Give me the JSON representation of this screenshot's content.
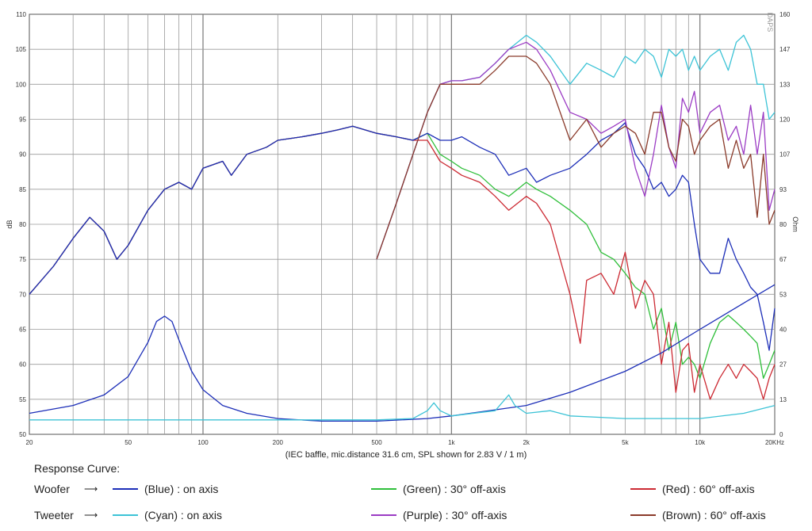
{
  "chart_data": {
    "type": "line",
    "title": "",
    "xlabel": "",
    "ylabel": "dB",
    "y2label": "Ohm",
    "xscale": "log",
    "xlim": [
      20,
      20000
    ],
    "ylim": [
      50,
      110
    ],
    "y2lim": [
      0,
      160
    ],
    "grid": true,
    "x_tick_labels": [
      "20",
      "50",
      "100",
      "200",
      "500",
      "1k",
      "2k",
      "5k",
      "10k",
      "20KHz"
    ],
    "x_tick_values": [
      20,
      50,
      100,
      200,
      500,
      1000,
      2000,
      5000,
      10000,
      20000
    ],
    "y_tick_labels": [
      "50",
      "55",
      "60",
      "65",
      "70",
      "75",
      "80",
      "85",
      "90",
      "95",
      "100",
      "105",
      "110"
    ],
    "y2_tick_labels": [
      "0",
      "13",
      "27",
      "40",
      "53",
      "67",
      "80",
      "93",
      "107",
      "120",
      "133",
      "147",
      "160"
    ],
    "watermark": "DAPS",
    "note": "(IEC baffle, mic.distance 31.6 cm, SPL shown for 2.83 V / 1 m)",
    "series": [
      {
        "name": "Woofer (Green) : 30° off-axis",
        "color": "#2fbf3a",
        "x": [
          20,
          25,
          30,
          35,
          40,
          45,
          50,
          60,
          70,
          80,
          90,
          100,
          120,
          130,
          150,
          180,
          200,
          250,
          300,
          350,
          400,
          500,
          600,
          700,
          800,
          900,
          1000,
          1100,
          1300,
          1500,
          1700,
          2000,
          2200,
          2500,
          3000,
          3500,
          4000,
          4500,
          5000,
          5500,
          6000,
          6500,
          7000,
          7500,
          8000,
          8500,
          9000,
          9500,
          10000,
          11000,
          12000,
          13000,
          14000,
          15000,
          16000,
          17000,
          18000,
          19000,
          20000
        ],
        "y": [
          70,
          74,
          78,
          81,
          79,
          75,
          77,
          82,
          85,
          86,
          85,
          88,
          89,
          87,
          90,
          91,
          92,
          92.5,
          93,
          93.5,
          94,
          93,
          92.5,
          92,
          93,
          90,
          89,
          88,
          87,
          85,
          84,
          86,
          85,
          84,
          82,
          80,
          76,
          75,
          73,
          71,
          70,
          65,
          68,
          62,
          66,
          60,
          61,
          60,
          58,
          63,
          66,
          67,
          66,
          65,
          64,
          63,
          58,
          60,
          62
        ]
      },
      {
        "name": "Woofer (Red) : 60° off-axis",
        "color": "#cc2a33",
        "x": [
          20,
          25,
          30,
          35,
          40,
          45,
          50,
          60,
          70,
          80,
          90,
          100,
          120,
          130,
          150,
          180,
          200,
          250,
          300,
          350,
          400,
          500,
          600,
          700,
          800,
          900,
          1000,
          1100,
          1300,
          1500,
          1700,
          2000,
          2200,
          2500,
          3000,
          3300,
          3500,
          4000,
          4500,
          5000,
          5500,
          6000,
          6500,
          7000,
          7500,
          8000,
          8500,
          9000,
          9500,
          10000,
          11000,
          12000,
          13000,
          14000,
          15000,
          16000,
          17000,
          18000,
          19000,
          20000
        ],
        "y": [
          70,
          74,
          78,
          81,
          79,
          75,
          77,
          82,
          85,
          86,
          85,
          88,
          89,
          87,
          90,
          91,
          92,
          92.5,
          93,
          93.5,
          94,
          93,
          92.5,
          92,
          92,
          89,
          88,
          87,
          86,
          84,
          82,
          84,
          83,
          80,
          70,
          63,
          72,
          73,
          70,
          76,
          68,
          72,
          70,
          60,
          66,
          56,
          62,
          63,
          56,
          60,
          55,
          58,
          60,
          58,
          60,
          59,
          58,
          55,
          58,
          60
        ]
      },
      {
        "name": "Woofer (Blue) : on axis",
        "color": "#1c2eb8",
        "x": [
          20,
          25,
          30,
          35,
          40,
          45,
          50,
          60,
          70,
          80,
          90,
          100,
          120,
          130,
          150,
          180,
          200,
          250,
          300,
          350,
          400,
          500,
          600,
          700,
          800,
          900,
          1000,
          1100,
          1300,
          1500,
          1700,
          2000,
          2200,
          2500,
          3000,
          3500,
          4000,
          4500,
          5000,
          5500,
          6000,
          6500,
          7000,
          7500,
          8000,
          8500,
          9000,
          9500,
          10000,
          11000,
          12000,
          13000,
          14000,
          15000,
          16000,
          17000,
          18000,
          19000,
          20000
        ],
        "y": [
          70,
          74,
          78,
          81,
          79,
          75,
          77,
          82,
          85,
          86,
          85,
          88,
          89,
          87,
          90,
          91,
          92,
          92.5,
          93,
          93.5,
          94,
          93,
          92.5,
          92,
          93,
          92,
          92,
          92.5,
          91,
          90,
          87,
          88,
          86,
          87,
          88,
          90,
          92,
          93,
          94.5,
          90,
          88,
          85,
          86,
          84,
          85,
          87,
          86,
          80,
          75,
          73,
          73,
          78,
          75,
          73,
          71,
          70,
          66,
          62,
          68
        ]
      },
      {
        "name": "Tweeter (Cyan) : on axis",
        "color": "#3cc3d6",
        "x": [
          500,
          600,
          700,
          800,
          900,
          1000,
          1100,
          1300,
          1500,
          1700,
          2000,
          2200,
          2500,
          3000,
          3500,
          4000,
          4500,
          5000,
          5500,
          6000,
          6500,
          7000,
          7500,
          8000,
          8500,
          9000,
          9500,
          10000,
          11000,
          12000,
          13000,
          14000,
          15000,
          16000,
          17000,
          18000,
          19000,
          20000
        ],
        "y": [
          75,
          83,
          90,
          96,
          100,
          100.5,
          100.5,
          101,
          103,
          105,
          107,
          106,
          104,
          100,
          103,
          102,
          101,
          104,
          103,
          105,
          104,
          101,
          105,
          104,
          105,
          102,
          104,
          102,
          104,
          105,
          102,
          106,
          107,
          105,
          100,
          100,
          95,
          96
        ]
      },
      {
        "name": "Tweeter (Purple) : 30° off-axis",
        "color": "#9b3bc4",
        "x": [
          500,
          600,
          700,
          800,
          900,
          1000,
          1100,
          1300,
          1500,
          1700,
          2000,
          2200,
          2500,
          3000,
          3500,
          4000,
          4500,
          5000,
          5500,
          6000,
          6500,
          7000,
          7500,
          8000,
          8500,
          9000,
          9500,
          10000,
          11000,
          12000,
          13000,
          14000,
          15000,
          16000,
          17000,
          18000,
          19000,
          20000
        ],
        "y": [
          75,
          83,
          90,
          96,
          100,
          100.5,
          100.5,
          101,
          103,
          105,
          106,
          105,
          102,
          96,
          95,
          93,
          94,
          95,
          88,
          84,
          90,
          97,
          91,
          88,
          98,
          96,
          99,
          93,
          96,
          97,
          92,
          94,
          90,
          97,
          90,
          96,
          82,
          85
        ]
      },
      {
        "name": "Tweeter (Brown) : 60° off-axis",
        "color": "#8a3a2a",
        "x": [
          500,
          600,
          700,
          800,
          900,
          1000,
          1100,
          1300,
          1500,
          1700,
          2000,
          2200,
          2500,
          3000,
          3500,
          4000,
          4500,
          5000,
          5500,
          6000,
          6500,
          7000,
          7500,
          8000,
          8500,
          9000,
          9500,
          10000,
          11000,
          12000,
          13000,
          14000,
          15000,
          16000,
          17000,
          18000,
          19000,
          20000
        ],
        "y": [
          75,
          83,
          90,
          96,
          100,
          100,
          100,
          100,
          102,
          104,
          104,
          103,
          100,
          92,
          95,
          91,
          93,
          94,
          93,
          90,
          96,
          96,
          91,
          89,
          95,
          94,
          90,
          92,
          94,
          95,
          88,
          92,
          88,
          90,
          81,
          90,
          80,
          82
        ]
      },
      {
        "name": "Woofer impedance",
        "color": "#1c2eb8",
        "axis": "right",
        "x": [
          20,
          30,
          40,
          50,
          60,
          65,
          70,
          75,
          80,
          90,
          100,
          120,
          150,
          200,
          300,
          500,
          800,
          1000,
          2000,
          3000,
          5000,
          7000,
          10000,
          15000,
          20000
        ],
        "y": [
          8,
          11,
          15,
          22,
          35,
          43,
          45,
          43,
          36,
          24,
          17,
          11,
          8,
          6,
          5,
          5,
          6,
          7,
          11,
          16,
          24,
          31,
          40,
          50,
          57
        ]
      },
      {
        "name": "Tweeter impedance",
        "color": "#3cc3d6",
        "axis": "right",
        "x": [
          20,
          100,
          200,
          500,
          700,
          800,
          850,
          900,
          1000,
          1500,
          1700,
          1800,
          2000,
          2500,
          3000,
          5000,
          10000,
          15000,
          20000
        ],
        "y": [
          5.5,
          5.5,
          5.5,
          5.5,
          6,
          9,
          12,
          9,
          7,
          9,
          15,
          11,
          8,
          9,
          7,
          6,
          6,
          8,
          11
        ]
      }
    ]
  },
  "legend": {
    "title": "Response Curve:",
    "rows": [
      {
        "label": "Woofer",
        "arrow": "⟶",
        "items": [
          {
            "text": "(Blue) : on axis",
            "color": "#1c2eb8"
          },
          {
            "text": "(Green) : 30° off-axis",
            "color": "#2fbf3a"
          },
          {
            "text": "(Red) : 60° off-axis",
            "color": "#cc2a33"
          }
        ]
      },
      {
        "label": "Tweeter",
        "arrow": "⟶",
        "items": [
          {
            "text": "(Cyan) : on axis",
            "color": "#3cc3d6"
          },
          {
            "text": "(Purple) : 30° off-axis",
            "color": "#9b3bc4"
          },
          {
            "text": "(Brown) : 60° off-axis",
            "color": "#8a3a2a"
          }
        ]
      }
    ]
  }
}
